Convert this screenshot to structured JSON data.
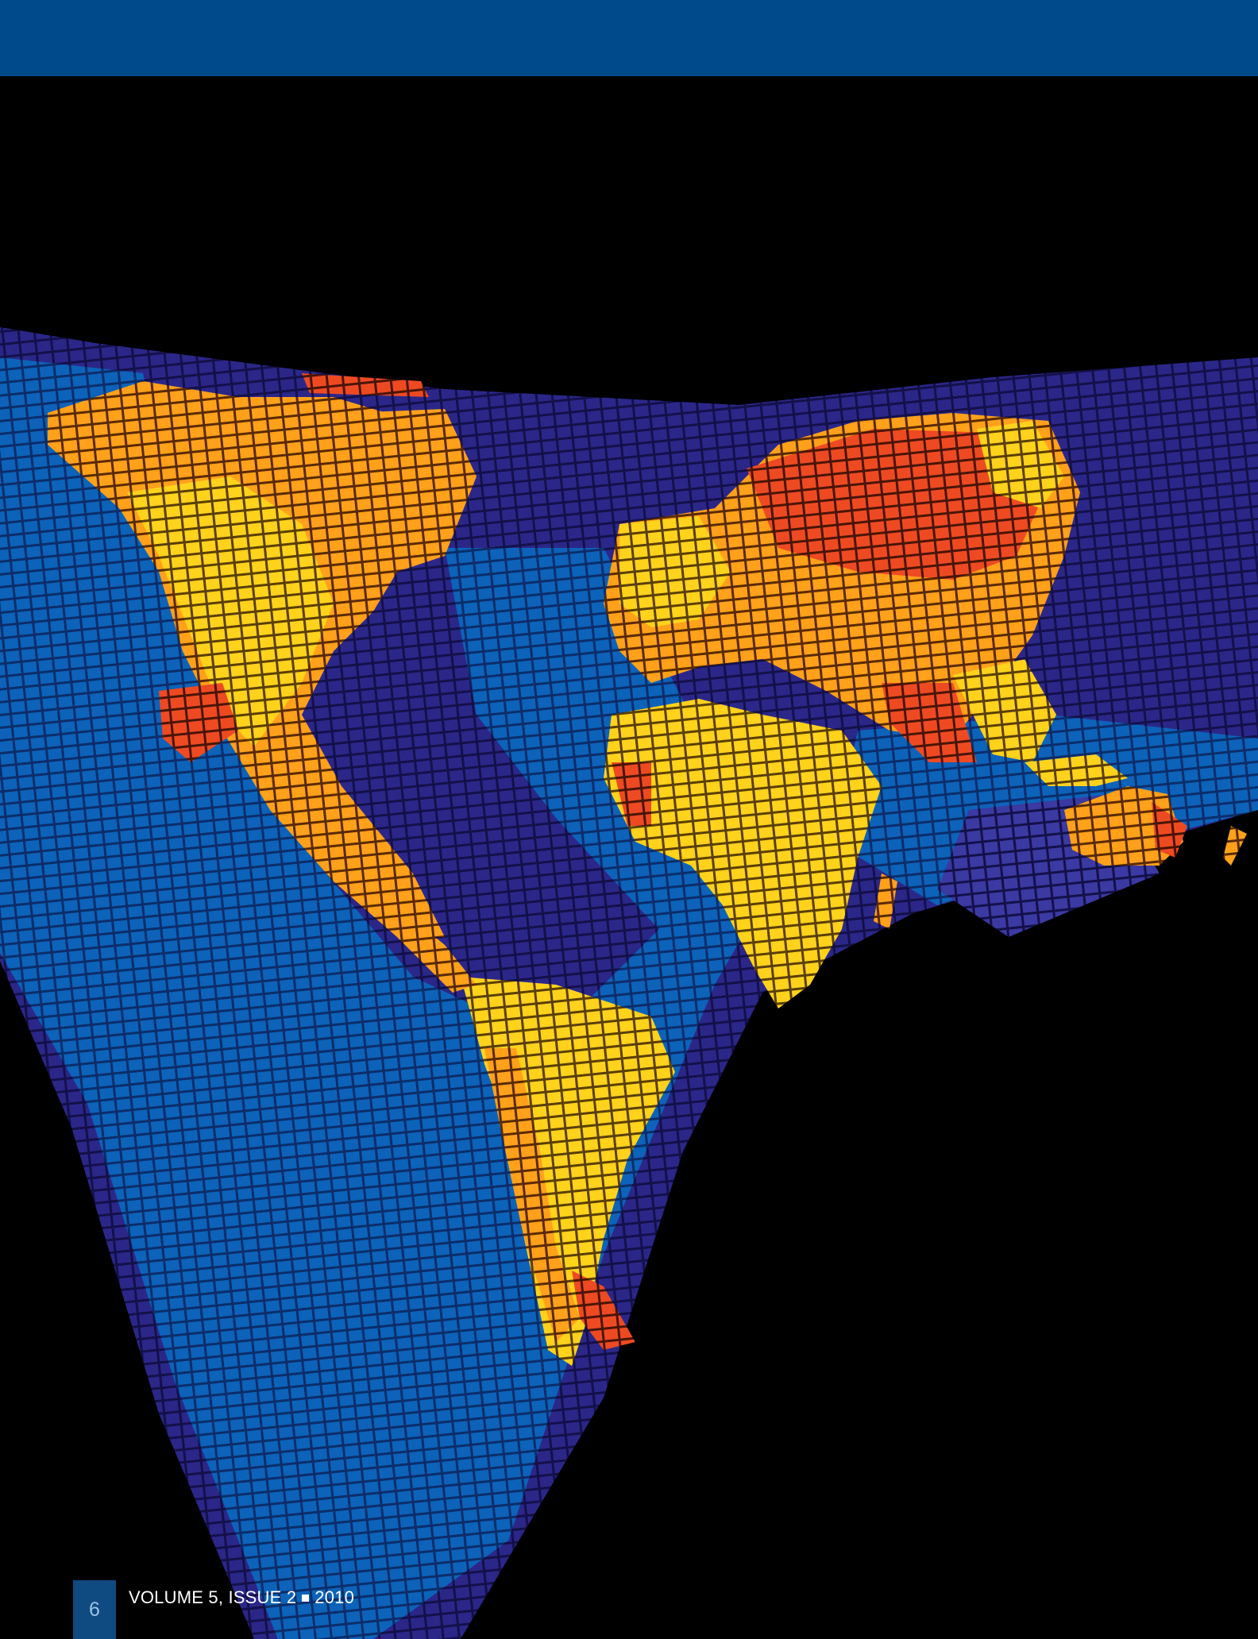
{
  "folio": {
    "page_number": "6",
    "publication": "VOLUME 5, ISSUE 2",
    "year": "2010"
  },
  "illustration": {
    "icon": "world-pixel-map-illustration",
    "colors": {
      "header_band": "#004a8c",
      "ocean_dark": "#211a6b",
      "ocean_mid": "#2f2d8e",
      "ocean_light": "#0a5bb2",
      "land_yellow": "#ffd21c",
      "land_orange": "#ff9f1a",
      "land_red": "#ef4b22"
    }
  }
}
